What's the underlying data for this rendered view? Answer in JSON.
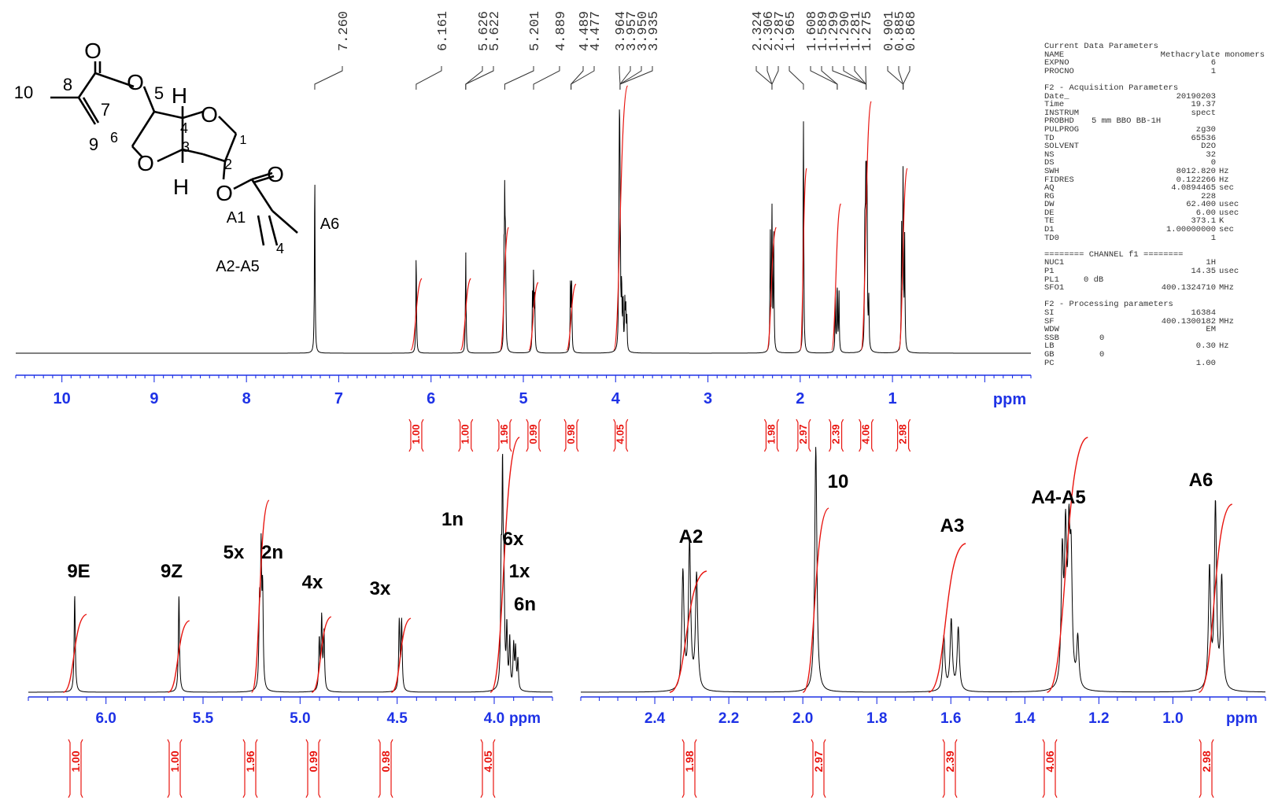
{
  "colors": {
    "spectrum": "#000000",
    "integral": "#e8140f",
    "axis": "#1e32e6",
    "integral_label": "#e8140f",
    "structure": "#000000"
  },
  "structure": {
    "labels": [
      "10",
      "8",
      "7",
      "9",
      "6",
      "5",
      "4",
      "3",
      "1",
      "2",
      "A1",
      "4",
      "A2-A5",
      "A6"
    ],
    "atoms": {
      "O": "O",
      "H": "H"
    }
  },
  "peak_labels": [
    "7.260",
    "6.161",
    "5.626",
    "5.622",
    "5.201",
    "4.889",
    "4.489",
    "4.477",
    "3.964",
    "3.957",
    "3.950",
    "3.935",
    "2.324",
    "2.306",
    "2.287",
    "1.965",
    "1.608",
    "1.589",
    "1.299",
    "1.290",
    "1.281",
    "1.275",
    "0.901",
    "0.885",
    "0.868"
  ],
  "parameters": {
    "current": {
      "title": "Current Data Parameters",
      "rows": [
        {
          "key": "NAME",
          "value": "Methacrylate monomers",
          "unit": ""
        },
        {
          "key": "EXPNO",
          "value": "6",
          "unit": ""
        },
        {
          "key": "PROCNO",
          "value": "1",
          "unit": ""
        }
      ]
    },
    "acquisition": {
      "title": "F2 - Acquisition Parameters",
      "rows": [
        {
          "key": "Date_",
          "value": "20190203",
          "unit": ""
        },
        {
          "key": "Time",
          "value": "19.37",
          "unit": ""
        },
        {
          "key": "INSTRUM",
          "value": "spect",
          "unit": ""
        },
        {
          "key": "PROBHD",
          "value": "5 mm BBO BB-1H",
          "unit": ""
        },
        {
          "key": "PULPROG",
          "value": "zg30",
          "unit": ""
        },
        {
          "key": "TD",
          "value": "65536",
          "unit": ""
        },
        {
          "key": "SOLVENT",
          "value": "D2O",
          "unit": ""
        },
        {
          "key": "NS",
          "value": "32",
          "unit": ""
        },
        {
          "key": "DS",
          "value": "0",
          "unit": ""
        },
        {
          "key": "SWH",
          "value": "8012.820",
          "unit": "Hz"
        },
        {
          "key": "FIDRES",
          "value": "0.122266",
          "unit": "Hz"
        },
        {
          "key": "AQ",
          "value": "4.0894465",
          "unit": "sec"
        },
        {
          "key": "RG",
          "value": "228",
          "unit": ""
        },
        {
          "key": "DW",
          "value": "62.400",
          "unit": "usec"
        },
        {
          "key": "DE",
          "value": "6.00",
          "unit": "usec"
        },
        {
          "key": "TE",
          "value": "373.1",
          "unit": "K"
        },
        {
          "key": "D1",
          "value": "1.00000000",
          "unit": "sec"
        },
        {
          "key": "TD0",
          "value": "1",
          "unit": ""
        }
      ]
    },
    "channel": {
      "title": "======== CHANNEL f1 ========",
      "rows": [
        {
          "key": "NUC1",
          "value": "1H",
          "unit": ""
        },
        {
          "key": "P1",
          "value": "14.35",
          "unit": "usec"
        },
        {
          "key": "PL1",
          "value": "0 dB",
          "unit": ""
        },
        {
          "key": "SFO1",
          "value": "400.1324710",
          "unit": "MHz"
        }
      ]
    },
    "processing": {
      "title": "F2 - Processing parameters",
      "rows": [
        {
          "key": "SI",
          "value": "16384",
          "unit": ""
        },
        {
          "key": "SF",
          "value": "400.1300182",
          "unit": "MHz"
        },
        {
          "key": "WDW",
          "value": "EM",
          "unit": ""
        },
        {
          "key": "SSB",
          "value": "0",
          "unit": ""
        },
        {
          "key": "LB",
          "value": "0.30",
          "unit": "Hz"
        },
        {
          "key": "GB",
          "value": "0",
          "unit": ""
        },
        {
          "key": "PC",
          "value": "1.00",
          "unit": ""
        }
      ]
    }
  },
  "chart_data": [
    {
      "type": "line",
      "panel": "full",
      "xlabel": "ppm",
      "xlim": [
        10.5,
        -0.5
      ],
      "x_ticks": [
        10,
        9,
        8,
        7,
        6,
        5,
        4,
        3,
        2,
        1
      ],
      "peaks": [
        {
          "shift": 7.26,
          "height": 0.76
        },
        {
          "shift": 6.161,
          "height": 0.42
        },
        {
          "shift": 5.624,
          "height": 0.42
        },
        {
          "shift": 5.201,
          "height": 0.57
        },
        {
          "shift": 4.889,
          "height": 0.31
        },
        {
          "shift": 4.483,
          "height": 0.3
        },
        {
          "shift": 3.95,
          "height": 0.86
        },
        {
          "shift": 2.306,
          "height": 0.6
        },
        {
          "shift": 1.965,
          "height": 1.0
        },
        {
          "shift": 1.599,
          "height": 0.32
        },
        {
          "shift": 1.287,
          "height": 0.58
        },
        {
          "shift": 0.885,
          "height": 0.75
        }
      ],
      "integrals": [
        {
          "from": 6.22,
          "to": 6.1,
          "value": "1.00"
        },
        {
          "from": 5.68,
          "to": 5.57,
          "value": "1.00"
        },
        {
          "from": 5.25,
          "to": 5.16,
          "value": "1.96"
        },
        {
          "from": 4.94,
          "to": 4.84,
          "value": "0.99"
        },
        {
          "from": 4.53,
          "to": 4.43,
          "value": "0.98"
        },
        {
          "from": 4.02,
          "to": 3.87,
          "value": "4.05"
        },
        {
          "from": 2.36,
          "to": 2.26,
          "value": "1.98"
        },
        {
          "from": 2.0,
          "to": 1.93,
          "value": "2.97"
        },
        {
          "from": 1.66,
          "to": 1.56,
          "value": "2.39"
        },
        {
          "from": 1.34,
          "to": 1.23,
          "value": "4.06"
        },
        {
          "from": 0.93,
          "to": 0.84,
          "value": "2.98"
        }
      ]
    },
    {
      "type": "line",
      "panel": "zoom-left",
      "xlabel": "ppm",
      "xlim": [
        6.4,
        3.7
      ],
      "x_ticks": [
        6.0,
        5.5,
        5.0,
        4.5,
        4.0
      ],
      "x_tick_labels": [
        "6.0",
        "5.5",
        "5.0",
        "4.5",
        "4.0"
      ],
      "assignments": [
        {
          "label": "9E",
          "shift": 6.161
        },
        {
          "label": "9Z",
          "shift": 5.624
        },
        {
          "label": "5x",
          "shift": 5.201
        },
        {
          "label": "2n",
          "shift": 5.201
        },
        {
          "label": "4x",
          "shift": 4.889
        },
        {
          "label": "3x",
          "shift": 4.483
        },
        {
          "label": "1n",
          "shift": 3.964
        },
        {
          "label": "6x",
          "shift": 3.95
        },
        {
          "label": "1x",
          "shift": 3.94
        },
        {
          "label": "6n",
          "shift": 3.935
        }
      ],
      "integrals": [
        "1.00",
        "1.00",
        "1.96",
        "0.99",
        "0.98",
        "4.05"
      ]
    },
    {
      "type": "line",
      "panel": "zoom-right",
      "xlabel": "ppm",
      "xlim": [
        2.6,
        0.75
      ],
      "x_ticks": [
        2.4,
        2.2,
        2.0,
        1.8,
        1.6,
        1.4,
        1.2,
        1.0
      ],
      "x_tick_labels": [
        "2.4",
        "2.2",
        "2.0",
        "1.8",
        "1.6",
        "1.4",
        "1.2",
        "1.0"
      ],
      "assignments": [
        {
          "label": "A2",
          "shift": 2.306
        },
        {
          "label": "10",
          "shift": 1.965
        },
        {
          "label": "A3",
          "shift": 1.599
        },
        {
          "label": "A4-A5",
          "shift": 1.287
        },
        {
          "label": "A6",
          "shift": 0.885
        }
      ],
      "integrals": [
        "1.98",
        "2.97",
        "2.39",
        "4.06",
        "2.98"
      ]
    }
  ]
}
